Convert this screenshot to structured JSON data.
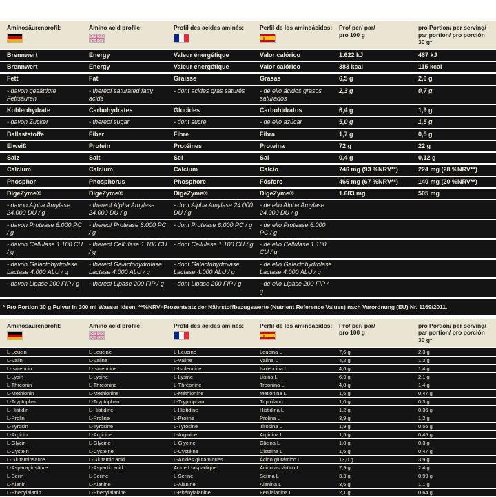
{
  "colors": {
    "band": "#141414",
    "header_bg": "#e9e5d2",
    "light_text": "#ece9db",
    "page_bg": "#ffffff"
  },
  "header": {
    "col_de": "Aminosäurenprofil:",
    "col_en": "Amino acid profile:",
    "col_fr": "Profil des acides aminés:",
    "col_es": "Perfil de los aminoácidos:",
    "col_100": "Pro/ per/ par/ pro 100 g",
    "col_serving": "pro Portion/ per serving/ par portion/ pro porción 30 g*",
    "flags": [
      "germany-flag",
      "uk-flag",
      "france-flag",
      "spain-flag"
    ]
  },
  "nutrition_table": {
    "rows": [
      {
        "de": "Brennwert",
        "en": "Energy",
        "fr": "Valeur énergétique",
        "es": "Valor calórico",
        "v100": "1.622 kJ",
        "v30": "487 kJ",
        "sub": false
      },
      {
        "de": "Brennwert",
        "en": "Energy",
        "fr": "Valeur énergétique",
        "es": "Valor calórico",
        "v100": "383 kcal",
        "v30": "115 kcal",
        "sub": false
      },
      {
        "de": "Fett",
        "en": "Fat",
        "fr": "Graisse",
        "es": "Grasas",
        "v100": "6,5 g",
        "v30": "2,0 g",
        "sub": false
      },
      {
        "de": "- davon gesättigte Fettsäuren",
        "en": "- thereof saturated fatty acids",
        "fr": "- dont acides gras saturés",
        "es": "- de ello ácidos grasos saturados",
        "v100": "2,3 g",
        "v30": "0,7 g",
        "sub": true
      },
      {
        "de": "Kohlenhydrate",
        "en": "Carbohydrates",
        "fr": "Glucides",
        "es": "Carbohidratos",
        "v100": "6,4 g",
        "v30": "1,9 g",
        "sub": false
      },
      {
        "de": "- davon Zucker",
        "en": "- thereof sugar",
        "fr": "- dont sucre",
        "es": "- de ello azúcar",
        "v100": "5,0 g",
        "v30": "1,5 g",
        "sub": true
      },
      {
        "de": "Ballaststoffe",
        "en": "Fiber",
        "fr": "Fibre",
        "es": "Fibra",
        "v100": "1,7 g",
        "v30": "0,5 g",
        "sub": false
      },
      {
        "de": "Eiweiß",
        "en": "Protein",
        "fr": "Protéines",
        "es": "Proteina",
        "v100": "72 g",
        "v30": "22 g",
        "sub": false
      },
      {
        "de": "Salz",
        "en": "Salt",
        "fr": "Sel",
        "es": "Sal",
        "v100": "0,4 g",
        "v30": "0,12 g",
        "sub": false
      },
      {
        "de": "Calcium",
        "en": "Calcium",
        "fr": "Calcium",
        "es": "Calcio",
        "v100": "746 mg (93 %NRV**)",
        "v30": "224 mg (28 %NRV**)",
        "sub": false
      },
      {
        "de": "Phosphor",
        "en": "Phosphorus",
        "fr": "Phosphore",
        "es": "Fósforo",
        "v100": "466 mg (67 %NRV**)",
        "v30": "140 mg (20 %NRV**)",
        "sub": false
      },
      {
        "de": "DigeZyme®",
        "en": "DigeZyme®",
        "fr": "DigeZyme®",
        "es": "DigeZyme®",
        "v100": "1.683 mg",
        "v30": "505 mg",
        "sub": false
      },
      {
        "de": "- davon Alpha Amylase 24.000 DU / g",
        "en": "- thereof Alpha Amylase 24.000 DU / g",
        "fr": "- dont Alpha Amylase 24.000 DU / g",
        "es": "- de ello Alpha Amylase 24.000 DU / g",
        "v100": "",
        "v30": "",
        "sub": true
      },
      {
        "de": "- davon Protease 6.000 PC / g",
        "en": "- thereof Protease 6.000 PC / g",
        "fr": "- dont Protease 6.000 PC / g",
        "es": "- de ello Protease 6.000 PC / g",
        "v100": "",
        "v30": "",
        "sub": true
      },
      {
        "de": "- davon Cellulase 1.100 CU / g",
        "en": "- thereof Cellulase 1.100 CU / g",
        "fr": "- dont Cellulase 1.100 CU / g",
        "es": "- de ello Cellulase 1.100 CU / g",
        "v100": "",
        "v30": "",
        "sub": true
      },
      {
        "de": "- davon Galactohydrolase Lactase 4.000 ALU / g",
        "en": "- thereof Galactohydrolase Lactase 4.000 ALU / g",
        "fr": "- dont Galactohydrolase Lactase 4.000 ALU / g",
        "es": "- de ello Galactohydrolase Lactase 4.000 ALU / g",
        "v100": "",
        "v30": "",
        "sub": true
      },
      {
        "de": "- davon Lipase 200 FIP / g",
        "en": "- thereof Lipase 200 FIP / g",
        "fr": "- dont Lipase 200 FIP / g",
        "es": "- de ello Lipase 200 FIP / g",
        "v100": "",
        "v30": "",
        "sub": true
      }
    ]
  },
  "footnote": "* Pro Portion 30 g Pulver in 300 ml Wasser lösen. **%NRV=Prozentsatz der Nährstoffbezugswerte (Nutrient Reference Values) nach Verordnung (EU) Nr. 1169/2011.",
  "amino_table": {
    "rows": [
      {
        "de": "L-Leucin",
        "en": "L-Leucine",
        "fr": "L-Leucine",
        "es": "Leucina L",
        "v100": "7,6 g",
        "v30": "2,3 g"
      },
      {
        "de": "L-Valin",
        "en": "L-Valine",
        "fr": "L-Valine",
        "es": "Valina L",
        "v100": "4,2 g",
        "v30": "1,3 g"
      },
      {
        "de": "L-Isoleucin",
        "en": "L-Isoleucine",
        "fr": "L-Isoleucine",
        "es": "Isoleucina L",
        "v100": "4,6 g",
        "v30": "1,4 g"
      },
      {
        "de": "L-Lysin",
        "en": "L-Lysine",
        "fr": "L-Lysine",
        "es": "Lisina L",
        "v100": "6,9 g",
        "v30": "2,1 g"
      },
      {
        "de": "L-Threonin",
        "en": "L-Threonine",
        "fr": "L-Thréonine",
        "es": "Treonina L",
        "v100": "4,8 g",
        "v30": "1,4 g"
      },
      {
        "de": "L-Methionin",
        "en": "L-Methionine",
        "fr": "L-Méthionine",
        "es": "Metionina L",
        "v100": "1,6 g",
        "v30": "0,47 g"
      },
      {
        "de": "L-Tryptophan",
        "en": "L-Tryptophan",
        "fr": "L-Tryptophan",
        "es": "Triptófano L",
        "v100": "1,0 g",
        "v30": "0,3 g"
      },
      {
        "de": "L-Histidin",
        "en": "L-Histidine",
        "fr": "L-Histidine",
        "es": "Histidina L",
        "v100": "1,2 g",
        "v30": "0,36 g"
      },
      {
        "de": "L-Prolin",
        "en": "L-Proline",
        "fr": "L-Proline",
        "es": "Prolina L",
        "v100": "3,9 g",
        "v30": "1,2 g"
      },
      {
        "de": "L-Tyrosin",
        "en": "L-Tyrosine",
        "fr": "L-Tyrosine",
        "es": "Tirosina L",
        "v100": "1,9 g",
        "v30": "0,56 g"
      },
      {
        "de": "L-Arginin",
        "en": "L-Arginine",
        "fr": "L-Arginine",
        "es": "Arginina L",
        "v100": "1,5 g",
        "v30": "0,45 g"
      },
      {
        "de": "L-Glycin",
        "en": "L-Glycine",
        "fr": "L-Glycine",
        "es": "Glicina L",
        "v100": "1,0 g",
        "v30": "0,3 g"
      },
      {
        "de": "L-Cystein",
        "en": "L-Cysteine",
        "fr": "L-Cystéine",
        "es": "Cisteina L",
        "v100": "1,6 g",
        "v30": "0,47 g"
      },
      {
        "de": "L-Glutaminsäure",
        "en": "L-Glutamic acid",
        "fr": "L-Acides glutamiques",
        "es": "Ácido glutámico L",
        "v100": "13,0 g",
        "v30": "3,9 g"
      },
      {
        "de": "L-Asparaginsäure",
        "en": "L-Aspartic acid",
        "fr": "Acide L-aspartique",
        "es": "Ácido aspártico L",
        "v100": "7,9 g",
        "v30": "2,4 g"
      },
      {
        "de": "L-Serin",
        "en": "L-Serine",
        "fr": "L-Sérine",
        "es": "Serina L",
        "v100": "3,3 g",
        "v30": "0,99 g"
      },
      {
        "de": "L-Alanin",
        "en": "L-Alanine",
        "fr": "L-Alanine",
        "es": "Alanina L",
        "v100": "3,6 g",
        "v30": "1,1 g"
      },
      {
        "de": "L-Phenylalanin",
        "en": "L-Phenylalanine",
        "fr": "L-Phénylalanine",
        "es": "Fenilalanina L",
        "v100": "2,1 g",
        "v30": "0,64 g"
      }
    ]
  }
}
